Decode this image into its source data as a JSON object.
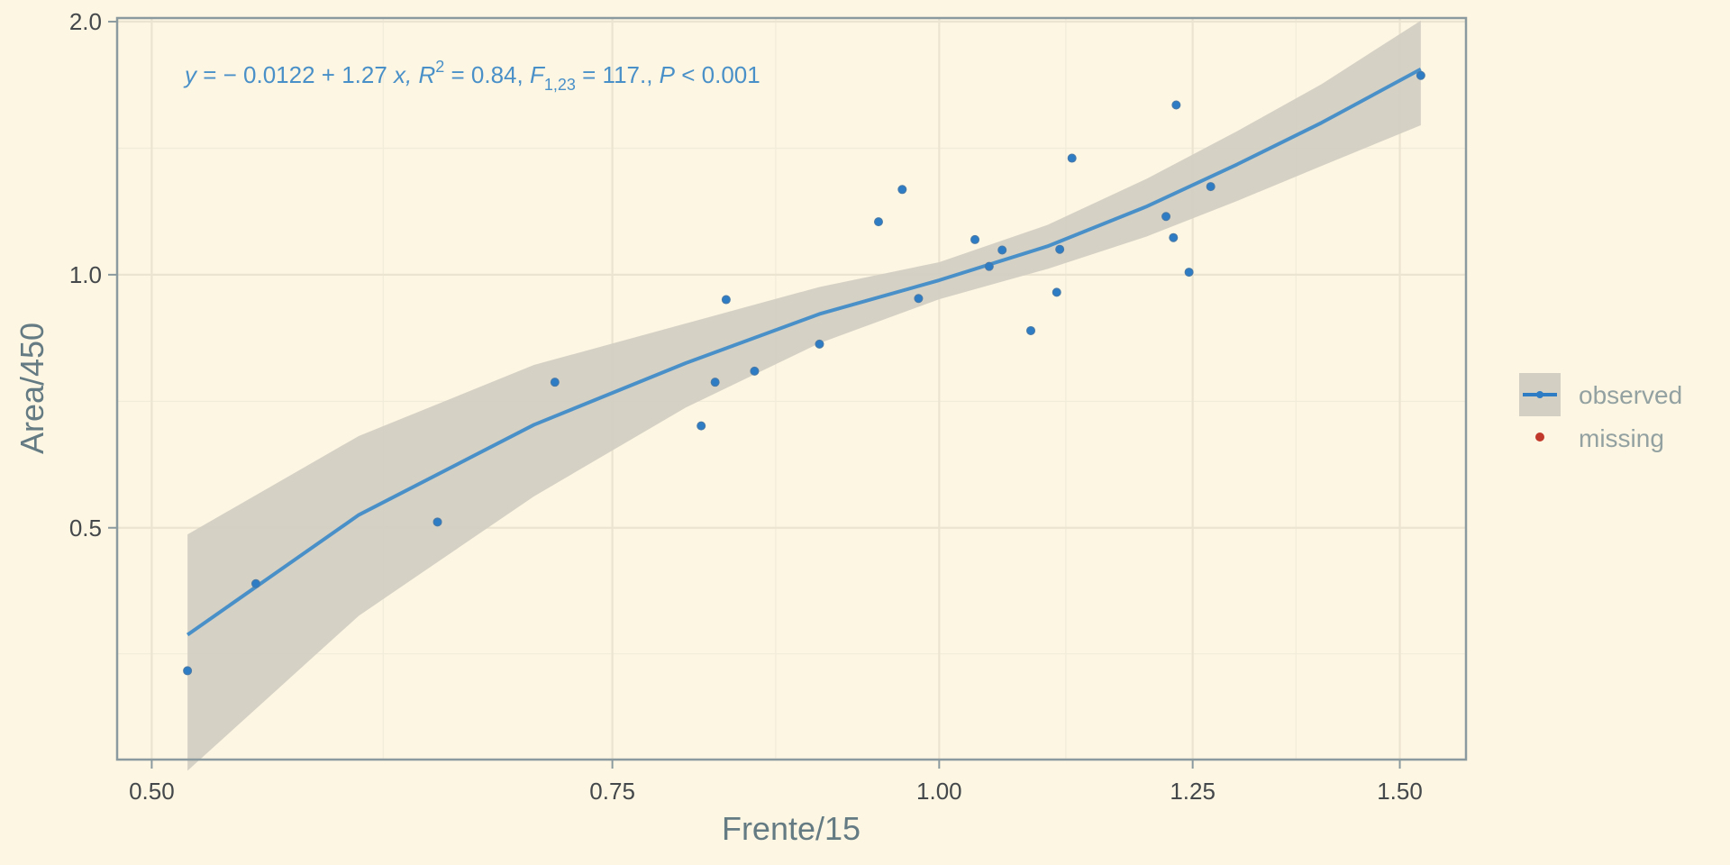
{
  "chart_data": {
    "type": "scatter",
    "title": "",
    "xlabel": "Frente/15",
    "ylabel": "Area/450",
    "x_scale": "log",
    "y_scale": "log",
    "xlim": [
      0.485,
      1.59
    ],
    "ylim": [
      0.265,
      2.02
    ],
    "x_ticks": [
      0.5,
      0.75,
      1.0,
      1.25,
      1.5
    ],
    "x_tick_labels": [
      "0.50",
      "0.75",
      "1.00",
      "1.25",
      "1.50"
    ],
    "y_ticks": [
      0.5,
      1.0,
      2.0
    ],
    "y_tick_labels": [
      "0.5",
      "1.0",
      "2.0"
    ],
    "x_minor_ticks": [
      0.613,
      0.866,
      1.118,
      1.369
    ],
    "y_minor_ticks": [
      0.354,
      0.707,
      1.414
    ],
    "grid": true,
    "legend_position": "right",
    "legend": [
      {
        "label": "observed",
        "color": "#2e7cc4"
      },
      {
        "label": "missing",
        "color": "#c0392b"
      }
    ],
    "annotation": {
      "y_part": "y",
      "eq_part": " = − 0.0122 + 1.27 ",
      "x_part": "x",
      "r_part": ", R",
      "r_sup": "2",
      "r_val": " = 0.84, ",
      "f_part": "F",
      "f_sub": "1,23",
      "f_val": " = 117., ",
      "p_part": "P",
      "p_val": " < 0.001"
    },
    "series": [
      {
        "name": "observed",
        "color": "#2e7cc4",
        "x": [
          0.516,
          0.548,
          0.643,
          0.713,
          0.811,
          0.821,
          0.829,
          0.85,
          0.9,
          0.948,
          0.968,
          0.982,
          1.032,
          1.045,
          1.057,
          1.084,
          1.109,
          1.112,
          1.124,
          1.221,
          1.229,
          1.232,
          1.246,
          1.27,
          1.528
        ],
        "y": [
          0.338,
          0.429,
          0.508,
          0.745,
          0.661,
          0.745,
          0.934,
          0.768,
          0.827,
          1.156,
          1.263,
          0.937,
          1.101,
          1.023,
          1.07,
          0.858,
          0.953,
          1.072,
          1.376,
          1.173,
          1.107,
          1.592,
          1.007,
          1.273,
          1.726
        ]
      }
    ],
    "fit": {
      "x": [
        0.516,
        0.6,
        0.7,
        0.8,
        0.9,
        1.0,
        1.1,
        1.2,
        1.3,
        1.4,
        1.528
      ],
      "y": [
        0.373,
        0.518,
        0.663,
        0.785,
        0.898,
        0.985,
        1.081,
        1.205,
        1.353,
        1.516,
        1.756
      ],
      "ci_low": [
        0.257,
        0.393,
        0.545,
        0.695,
        0.829,
        0.935,
        1.016,
        1.11,
        1.224,
        1.347,
        1.506
      ],
      "ci_high": [
        0.491,
        0.643,
        0.781,
        0.875,
        0.967,
        1.035,
        1.146,
        1.3,
        1.482,
        1.685,
        2.006
      ]
    }
  }
}
